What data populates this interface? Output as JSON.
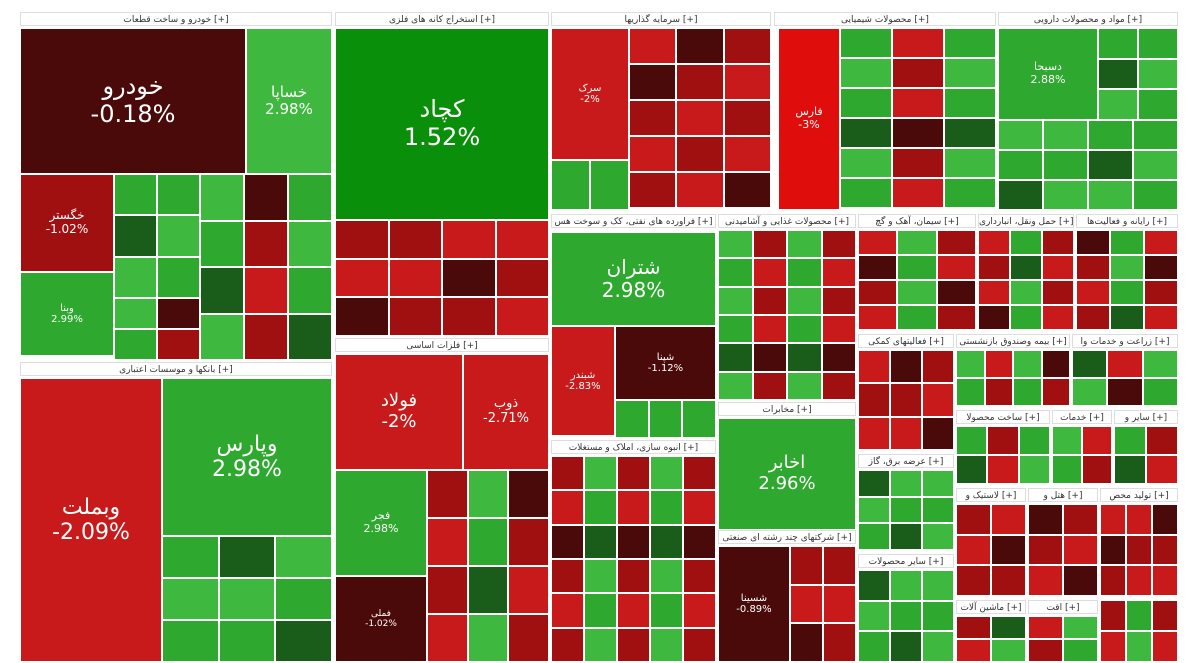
{
  "chart_data": {
    "type": "treemap",
    "colors": {
      "up_strong": "#0a8f0a",
      "up": "#2ea82e",
      "up_light": "#3fb83f",
      "down": "#c81a1a",
      "down_dark": "#a01010",
      "down_deep": "#4a0a0a",
      "down_bright": "#e00d0d",
      "up_dark": "#1a5c1a"
    },
    "sectors": [
      {
        "name": "خودرو و ساخت قطعات [+]"
      },
      {
        "name": "استخراج کانه های فلزی [+]"
      },
      {
        "name": "سرمایه گذاریها [+]"
      },
      {
        "name": "محصولات شیمیایی [+]"
      },
      {
        "name": "مواد و محصولات دارویی [+]"
      },
      {
        "name": "بانکها و موسسات اعتباری [+]"
      },
      {
        "name": "فلزات اساسی [+]"
      },
      {
        "name": "فراورده های نفتی، کک و سوخت هس [+]"
      },
      {
        "name": "محصولات غذایی و آشامیدنی [+]"
      },
      {
        "name": "سیمان، آهک و گچ [+]"
      },
      {
        "name": "حمل ونقل، انبارداری [+]"
      },
      {
        "name": "رایانه و فعالیت‌ها [+]"
      },
      {
        "name": "انبوه سازی، املاک و مستغلات [+]"
      },
      {
        "name": "مخابرات [+]"
      },
      {
        "name": "فعالیتهای کمکی [+]"
      },
      {
        "name": "بیمه وصندوق بازنشستی [+]"
      },
      {
        "name": "زراعت و خدمات وا [+]"
      },
      {
        "name": "شرکتهای چند رشته ای صنعتی [+]"
      },
      {
        "name": "ساخت محصولا [+]"
      },
      {
        "name": "خدمات [+]"
      },
      {
        "name": "سایر و [+]"
      },
      {
        "name": "عرضه برق، گاز [+]"
      },
      {
        "name": "لاستیک و [+]"
      },
      {
        "name": "هتل و [+]"
      },
      {
        "name": "تولید محص [+]"
      },
      {
        "name": "سایر محصولات [+]"
      },
      {
        "name": "ماشین آلات [+]"
      },
      {
        "name": "اقت [+]"
      }
    ],
    "stocks": [
      {
        "symbol": "خودرو",
        "change": "-0.18%"
      },
      {
        "symbol": "خساپا",
        "change": "2.98%"
      },
      {
        "symbol": "خگستر",
        "change": "-1.02%"
      },
      {
        "symbol": "وبملت",
        "change": "-2.09%"
      },
      {
        "symbol": "وپارس",
        "change": "2.98%"
      },
      {
        "symbol": "کچاد",
        "change": "1.52%"
      },
      {
        "symbol": "فولاد",
        "change": "-2%"
      },
      {
        "symbol": "ذوب",
        "change": "-2.71%"
      },
      {
        "symbol": "شتران",
        "change": "2.98%"
      },
      {
        "symbol": "شبندر",
        "change": "-2.83%"
      },
      {
        "symbol": "شپنا",
        "change": "-1.12%"
      },
      {
        "symbol": "اخابر",
        "change": "2.96%"
      },
      {
        "symbol": "فارس",
        "change": "-3%"
      },
      {
        "symbol": "دسبحا",
        "change": "2.88%"
      },
      {
        "symbol": "فجر",
        "change": "2.98%"
      },
      {
        "symbol": "شسینا",
        "change": "-0.89%"
      },
      {
        "symbol": "وبنا",
        "change": "2.99%"
      },
      {
        "symbol": "فملی",
        "change": "-1.02%"
      },
      {
        "symbol": "سرک",
        "change": "-2%"
      }
    ]
  }
}
